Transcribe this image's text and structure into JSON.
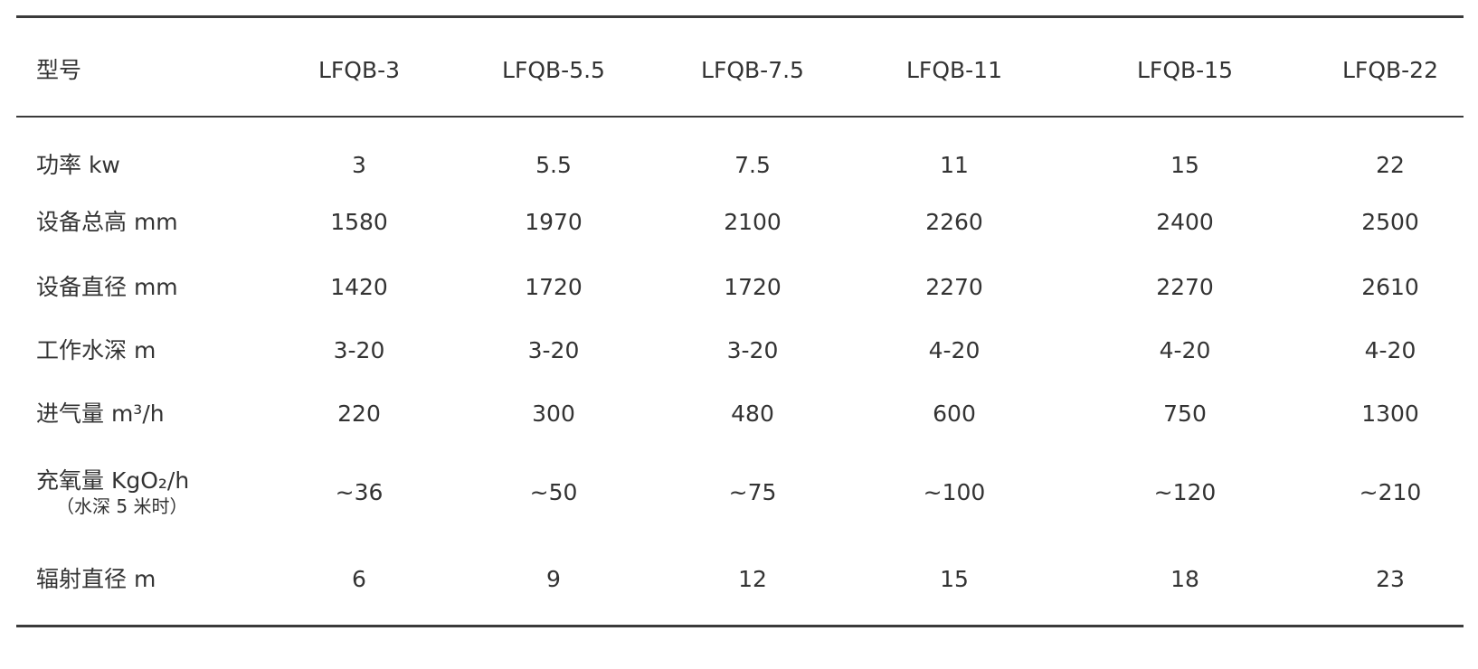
{
  "table": {
    "header": [
      "型号",
      "LFQB-3",
      "LFQB-5.5",
      "LFQB-7.5",
      "LFQB-11",
      "LFQB-15",
      "LFQB-22"
    ],
    "rows": [
      {
        "label": "功率 kw",
        "cells": [
          "3",
          "5.5",
          "7.5",
          "11",
          "15",
          "22"
        ]
      },
      {
        "label": "设备总高 mm",
        "cells": [
          "1580",
          "1970",
          "2100",
          "2260",
          "2400",
          "2500"
        ]
      },
      {
        "label": "设备直径 mm",
        "cells": [
          "1420",
          "1720",
          "1720",
          "2270",
          "2270",
          "2610"
        ]
      },
      {
        "label": "工作水深 m",
        "cells": [
          "3-20",
          "3-20",
          "3-20",
          "4-20",
          "4-20",
          "4-20"
        ]
      },
      {
        "label": "进气量 m³/h",
        "cells": [
          "220",
          "300",
          "480",
          "600",
          "750",
          "1300"
        ]
      },
      {
        "label": "充氧量 KgO₂/h",
        "note": "（水深 5 米时）",
        "cells": [
          "~36",
          "~50",
          "~75",
          "~100",
          "~120",
          "~210"
        ]
      },
      {
        "label": "辐射直径 m",
        "cells": [
          "6",
          "9",
          "12",
          "15",
          "18",
          "23"
        ]
      }
    ]
  }
}
